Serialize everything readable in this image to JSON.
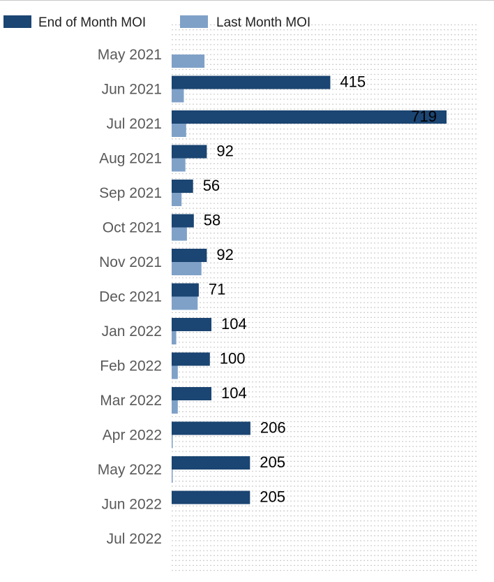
{
  "chart_data": {
    "type": "bar",
    "orientation": "horizontal",
    "categories": [
      "May 2021",
      "Jun 2021",
      "Jul 2021",
      "Aug 2021",
      "Sep 2021",
      "Oct 2021",
      "Nov 2021",
      "Dec 2021",
      "Jan 2022",
      "Feb 2022",
      "Mar 2022",
      "Apr 2022",
      "May 2022",
      "Jun 2022",
      "Jul 2022"
    ],
    "series": [
      {
        "name": "End of Month MOI",
        "color": "#1b4572",
        "values": [
          null,
          415,
          719,
          92,
          56,
          58,
          92,
          71,
          104,
          100,
          104,
          206,
          205,
          205,
          null
        ],
        "data_labels": [
          "",
          "415",
          "719",
          "92",
          "56",
          "58",
          "92",
          "71",
          "104",
          "100",
          "104",
          "206",
          "205",
          "205",
          ""
        ]
      },
      {
        "name": "Last Month MOI",
        "color": "#7fa1c8",
        "values": [
          86,
          32,
          38,
          36,
          26,
          40,
          78,
          68,
          12,
          16,
          16,
          2,
          2,
          null,
          null
        ]
      }
    ],
    "xlim": [
      0,
      1000
    ],
    "grid": true,
    "legend_position": "top-left"
  }
}
